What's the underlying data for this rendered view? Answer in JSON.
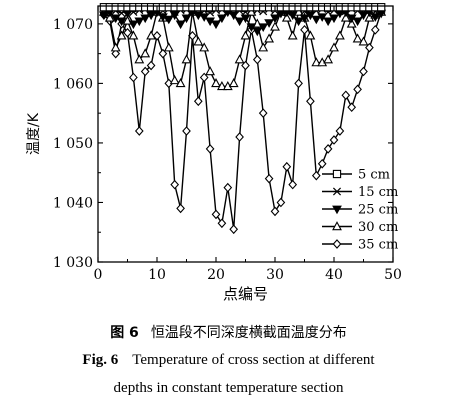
{
  "chart_data": {
    "type": "line",
    "xlabel": "点编号",
    "ylabel": "温度/K",
    "xlim": [
      0,
      50
    ],
    "ylim": [
      1030,
      1073
    ],
    "xticks": [
      0,
      10,
      20,
      30,
      40,
      50
    ],
    "yticks": [
      1030,
      1040,
      1050,
      1060,
      1070
    ],
    "ytick_labels": [
      "1 030",
      "1 040",
      "1 050",
      "1 060",
      "1 070"
    ],
    "grid": false,
    "legend_position": "bottom-right",
    "series": [
      {
        "name": "5 cm",
        "marker": "square",
        "x": [
          1,
          2,
          3,
          4,
          5,
          6,
          7,
          8,
          9,
          10,
          11,
          12,
          13,
          14,
          15,
          16,
          17,
          18,
          19,
          20,
          21,
          22,
          23,
          24,
          25,
          26,
          27,
          28,
          29,
          30,
          31,
          32,
          33,
          34,
          35,
          36,
          37,
          38,
          39,
          40,
          41,
          42,
          43,
          44,
          45,
          46,
          47,
          48
        ],
        "y": [
          1072.8,
          1072.8,
          1072.8,
          1072.8,
          1072.8,
          1072.8,
          1072.8,
          1072.8,
          1072.8,
          1072.8,
          1072.8,
          1072.8,
          1072.8,
          1072.8,
          1072.8,
          1072.8,
          1072.8,
          1072.8,
          1072.8,
          1072.8,
          1072.8,
          1072.8,
          1072.8,
          1072.8,
          1072.8,
          1072.8,
          1072.8,
          1072.8,
          1072.8,
          1072.8,
          1072.8,
          1072.8,
          1072.8,
          1072.8,
          1072.8,
          1072.8,
          1072.8,
          1072.8,
          1072.8,
          1072.8,
          1072.8,
          1072.8,
          1072.8,
          1072.8,
          1072.8,
          1072.8,
          1072.8,
          1072.8
        ]
      },
      {
        "name": "15 cm",
        "marker": "x",
        "x": [
          1,
          2,
          3,
          4,
          5,
          6,
          7,
          8,
          9,
          10,
          11,
          12,
          13,
          14,
          15,
          16,
          17,
          18,
          19,
          20,
          21,
          22,
          23,
          24,
          25,
          26,
          27,
          28,
          29,
          30,
          31,
          32,
          33,
          34,
          35,
          36,
          37,
          38,
          39,
          40,
          41,
          42,
          43,
          44,
          45,
          46,
          47,
          48
        ],
        "y": [
          1072.3,
          1072.5,
          1072.2,
          1071.8,
          1072.4,
          1072.0,
          1072.3,
          1072.5,
          1072.1,
          1072.4,
          1072.2,
          1072.5,
          1072.0,
          1072.3,
          1072.4,
          1072.1,
          1072.5,
          1072.2,
          1071.9,
          1072.3,
          1072.4,
          1072.1,
          1072.5,
          1072.2,
          1072.0,
          1072.4,
          1072.3,
          1072.1,
          1072.5,
          1072.2,
          1072.4,
          1072.0,
          1072.3,
          1072.5,
          1072.1,
          1072.4,
          1072.2,
          1072.5,
          1072.0,
          1072.3,
          1072.4,
          1072.1,
          1072.5,
          1072.2,
          1072.3,
          1072.4,
          1072.1,
          1072.3
        ]
      },
      {
        "name": "25 cm",
        "marker": "triangle-down",
        "x": [
          1,
          2,
          3,
          4,
          5,
          6,
          7,
          8,
          9,
          10,
          11,
          12,
          13,
          14,
          15,
          16,
          17,
          18,
          19,
          20,
          21,
          22,
          23,
          24,
          25,
          26,
          27,
          28,
          29,
          30,
          31,
          32,
          33,
          34,
          35,
          36,
          37,
          38,
          39,
          40,
          41,
          42,
          43,
          44,
          45,
          46,
          47,
          48
        ],
        "y": [
          1071.5,
          1072.0,
          1071.0,
          1070.5,
          1071.8,
          1070.0,
          1070.5,
          1071.0,
          1071.5,
          1072.0,
          1071.2,
          1070.8,
          1071.5,
          1070.0,
          1071.0,
          1072.0,
          1071.5,
          1071.2,
          1070.5,
          1070.0,
          1071.0,
          1072.0,
          1071.5,
          1070.5,
          1071.0,
          1069.5,
          1068.8,
          1069.5,
          1070.2,
          1071.0,
          1071.8,
          1072.0,
          1071.5,
          1070.5,
          1071.0,
          1071.5,
          1070.8,
          1071.2,
          1070.5,
          1071.0,
          1071.8,
          1072.0,
          1071.0,
          1070.5,
          1071.5,
          1072.0,
          1071.2,
          1071.8
        ]
      },
      {
        "name": "30 cm",
        "marker": "triangle-up",
        "x": [
          1,
          2,
          3,
          4,
          5,
          6,
          7,
          8,
          9,
          10,
          11,
          12,
          13,
          14,
          15,
          16,
          17,
          18,
          19,
          20,
          21,
          22,
          23,
          24,
          25,
          26,
          27,
          28,
          29,
          30,
          31,
          32,
          33,
          34,
          35,
          36,
          37,
          38,
          39,
          40,
          41,
          42,
          43,
          44,
          45,
          46,
          47,
          48
        ],
        "y": [
          1072.0,
          1071.0,
          1066.0,
          1068.0,
          1070.5,
          1068.0,
          1064.0,
          1065.0,
          1068.0,
          1072.0,
          1071.0,
          1066.0,
          1060.5,
          1060.0,
          1064.0,
          1072.0,
          1067.0,
          1066.0,
          1062.0,
          1060.0,
          1059.5,
          1059.5,
          1060.0,
          1064.0,
          1068.0,
          1072.0,
          1070.0,
          1066.0,
          1067.5,
          1069.5,
          1072.0,
          1071.0,
          1068.0,
          1072.0,
          1071.0,
          1068.0,
          1063.5,
          1063.5,
          1064.0,
          1066.0,
          1068.0,
          1071.0,
          1070.0,
          1067.5,
          1067.0,
          1071.0,
          1071.5,
          1072.0
        ]
      },
      {
        "name": "35 cm",
        "marker": "diamond",
        "x": [
          1,
          2,
          3,
          4,
          5,
          6,
          7,
          8,
          9,
          10,
          11,
          12,
          13,
          14,
          15,
          16,
          17,
          18,
          19,
          20,
          21,
          22,
          23,
          24,
          25,
          26,
          27,
          28,
          29,
          30,
          31,
          32,
          33,
          34,
          35,
          36,
          37,
          38,
          39,
          40,
          41,
          42,
          43,
          44,
          45,
          46,
          47,
          48
        ],
        "y": [
          1071.5,
          1070.5,
          1065.0,
          1070.0,
          1068.5,
          1061.0,
          1052.0,
          1062.0,
          1063.0,
          1068.0,
          1065.0,
          1060.0,
          1043.0,
          1039.0,
          1052.0,
          1068.0,
          1057.0,
          1061.0,
          1049.0,
          1038.0,
          1036.5,
          1042.5,
          1035.5,
          1051.0,
          1063.0,
          1069.0,
          1064.0,
          1055.0,
          1044.0,
          1038.5,
          1040.0,
          1046.0,
          1043.0,
          1060.0,
          1069.0,
          1057.0,
          1044.5,
          1046.5,
          1049.0,
          1050.5,
          1052.0,
          1058.0,
          1056.0,
          1059.0,
          1062.0,
          1066.0,
          1069.0,
          1072.0
        ]
      }
    ]
  },
  "caption": {
    "cn_fig_no": "图 6",
    "cn_text": "恒温段不同深度横截面温度分布",
    "en_fig_no": "Fig. 6",
    "en_line1": "Temperature of cross section at different",
    "en_line2": "depths in constant temperature section"
  }
}
